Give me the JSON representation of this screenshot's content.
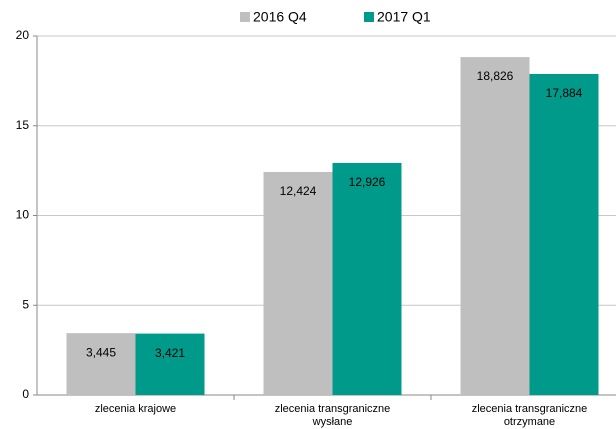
{
  "chart_data": {
    "type": "bar",
    "categories": [
      "zlecenia krajowe",
      "zlecenia transgraniczne wysłane",
      "zlecenia transgraniczne otrzymane"
    ],
    "series": [
      {
        "name": "2016 Q4",
        "color": "#bfbfbf",
        "values": [
          3.445,
          12.424,
          18.826
        ],
        "value_labels": [
          "3,445",
          "12,424",
          "18,826"
        ]
      },
      {
        "name": "2017 Q1",
        "color": "#009a8a",
        "values": [
          3.421,
          12.926,
          17.884
        ],
        "value_labels": [
          "3,421",
          "12,926",
          "17,884"
        ]
      }
    ],
    "ylim": [
      0,
      20
    ],
    "yticks": [
      0,
      5,
      10,
      15,
      20
    ],
    "grid": true,
    "legend": "top"
  }
}
